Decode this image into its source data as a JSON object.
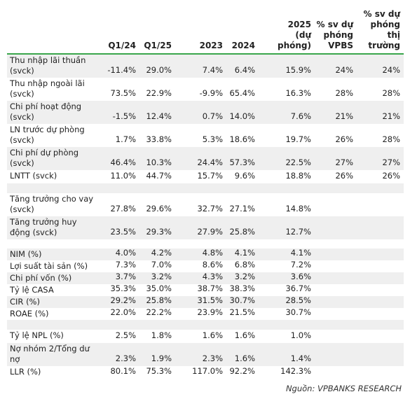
{
  "headers": {
    "q1_24": "Q1/24",
    "q1_25": "Q1/25",
    "y2023": "2023",
    "y2024": "2024",
    "f2025": "2025\n(dự\nphóng)",
    "vs_vpbs": "% sv dự\nphóng\nVPBS",
    "vs_market": "% sv dự\nphóng\nthị\ntrường"
  },
  "rows": [
    {
      "label": "Thu nhập lãi thuần (svck)",
      "q1_24": "-11.4%",
      "q1_25": "29.0%",
      "y2023": "7.4%",
      "y2024": "6.4%",
      "f2025": "15.9%",
      "vs_vpbs": "24%",
      "vs_market": "24%",
      "shade": true,
      "h": 33
    },
    {
      "label": "Thu nhập ngoài lãi (svck)",
      "q1_24": "73.5%",
      "q1_25": "22.9%",
      "y2023": "-9.9%",
      "y2024": "65.4%",
      "f2025": "16.3%",
      "vs_vpbs": "28%",
      "vs_market": "28%",
      "shade": false,
      "h": 33
    },
    {
      "label": "Chi phí hoạt động (svck)",
      "q1_24": "-1.5%",
      "q1_25": "12.4%",
      "y2023": "0.7%",
      "y2024": "14.0%",
      "f2025": "7.6%",
      "vs_vpbs": "21%",
      "vs_market": "21%",
      "shade": true,
      "h": 33
    },
    {
      "label": "LN trước dự phòng (svck)",
      "q1_24": "1.7%",
      "q1_25": "33.8%",
      "y2023": "5.3%",
      "y2024": "18.6%",
      "f2025": "19.7%",
      "vs_vpbs": "26%",
      "vs_market": "28%",
      "shade": false,
      "h": 33
    },
    {
      "label": "Chi phí dự phòng (svck)",
      "q1_24": "46.4%",
      "q1_25": "10.3%",
      "y2023": "24.4%",
      "y2024": "57.3%",
      "f2025": "22.5%",
      "vs_vpbs": "27%",
      "vs_market": "27%",
      "shade": true,
      "h": 33
    },
    {
      "label": "LNTT (svck)",
      "q1_24": "11.0%",
      "q1_25": "44.7%",
      "y2023": "15.7%",
      "y2024": "9.6%",
      "f2025": "18.8%",
      "vs_vpbs": "26%",
      "vs_market": "26%",
      "shade": false,
      "h": 19
    },
    {
      "label": "",
      "q1_24": "",
      "q1_25": "",
      "y2023": "",
      "y2024": "",
      "f2025": "",
      "vs_vpbs": "",
      "vs_market": "",
      "shade": true,
      "h": 14
    },
    {
      "label": "Tăng trưởng cho vay (svck)",
      "q1_24": "27.8%",
      "q1_25": "29.6%",
      "y2023": "32.7%",
      "y2024": "27.1%",
      "f2025": "14.8%",
      "vs_vpbs": "",
      "vs_market": "",
      "shade": false,
      "h": 33
    },
    {
      "label": "Tăng trưởng huy động (svck)",
      "q1_24": "23.5%",
      "q1_25": "29.3%",
      "y2023": "27.9%",
      "y2024": "25.8%",
      "f2025": "12.7%",
      "vs_vpbs": "",
      "vs_market": "",
      "shade": true,
      "h": 33
    },
    {
      "label": "",
      "q1_24": "",
      "q1_25": "",
      "y2023": "",
      "y2024": "",
      "f2025": "",
      "vs_vpbs": "",
      "vs_market": "",
      "shade": false,
      "h": 13
    },
    {
      "label": "NIM (%)",
      "q1_24": "4.0%",
      "q1_25": "4.2%",
      "y2023": "4.8%",
      "y2024": "4.1%",
      "f2025": "4.1%",
      "vs_vpbs": "",
      "vs_market": "",
      "shade": true,
      "h": 17
    },
    {
      "label": "Lợi suất tài sản (%)",
      "q1_24": "7.3%",
      "q1_25": "7.0%",
      "y2023": "8.6%",
      "y2024": "6.8%",
      "f2025": "7.2%",
      "vs_vpbs": "",
      "vs_market": "",
      "shade": false,
      "h": 17
    },
    {
      "label": "Chi phí vốn (%)",
      "q1_24": "3.7%",
      "q1_25": "3.2%",
      "y2023": "4.3%",
      "y2024": "3.2%",
      "f2025": "3.6%",
      "vs_vpbs": "",
      "vs_market": "",
      "shade": true,
      "h": 17
    },
    {
      "label": "Tỷ lệ CASA",
      "q1_24": "35.3%",
      "q1_25": "35.0%",
      "y2023": "38.7%",
      "y2024": "38.3%",
      "f2025": "36.7%",
      "vs_vpbs": "",
      "vs_market": "",
      "shade": false,
      "h": 17
    },
    {
      "label": "CIR (%)",
      "q1_24": "29.2%",
      "q1_25": "25.8%",
      "y2023": "31.5%",
      "y2024": "30.7%",
      "f2025": "28.5%",
      "vs_vpbs": "",
      "vs_market": "",
      "shade": true,
      "h": 17
    },
    {
      "label": "ROAE (%)",
      "q1_24": "22.0%",
      "q1_25": "22.2%",
      "y2023": "23.9%",
      "y2024": "21.5%",
      "f2025": "30.7%",
      "vs_vpbs": "",
      "vs_market": "",
      "shade": false,
      "h": 17
    },
    {
      "label": "",
      "q1_24": "",
      "q1_25": "",
      "y2023": "",
      "y2024": "",
      "f2025": "",
      "vs_vpbs": "",
      "vs_market": "",
      "shade": true,
      "h": 14
    },
    {
      "label": "Tỷ lệ NPL (%)",
      "q1_24": "2.5%",
      "q1_25": "1.8%",
      "y2023": "1.6%",
      "y2024": "1.6%",
      "f2025": "1.0%",
      "vs_vpbs": "",
      "vs_market": "",
      "shade": false,
      "h": 19
    },
    {
      "label": "Nợ nhóm 2/Tổng dư nợ",
      "q1_24": "2.3%",
      "q1_25": "1.9%",
      "y2023": "2.3%",
      "y2024": "1.6%",
      "f2025": "1.4%",
      "vs_vpbs": "",
      "vs_market": "",
      "shade": true,
      "h": 33
    },
    {
      "label": "LLR (%)",
      "q1_24": "80.1%",
      "q1_25": "75.3%",
      "y2023": "117.0%",
      "y2024": "92.2%",
      "f2025": "142.3%",
      "vs_vpbs": "",
      "vs_market": "",
      "shade": false,
      "h": 18
    }
  ],
  "source": "Nguồn: VPBANKS RESEARCH"
}
